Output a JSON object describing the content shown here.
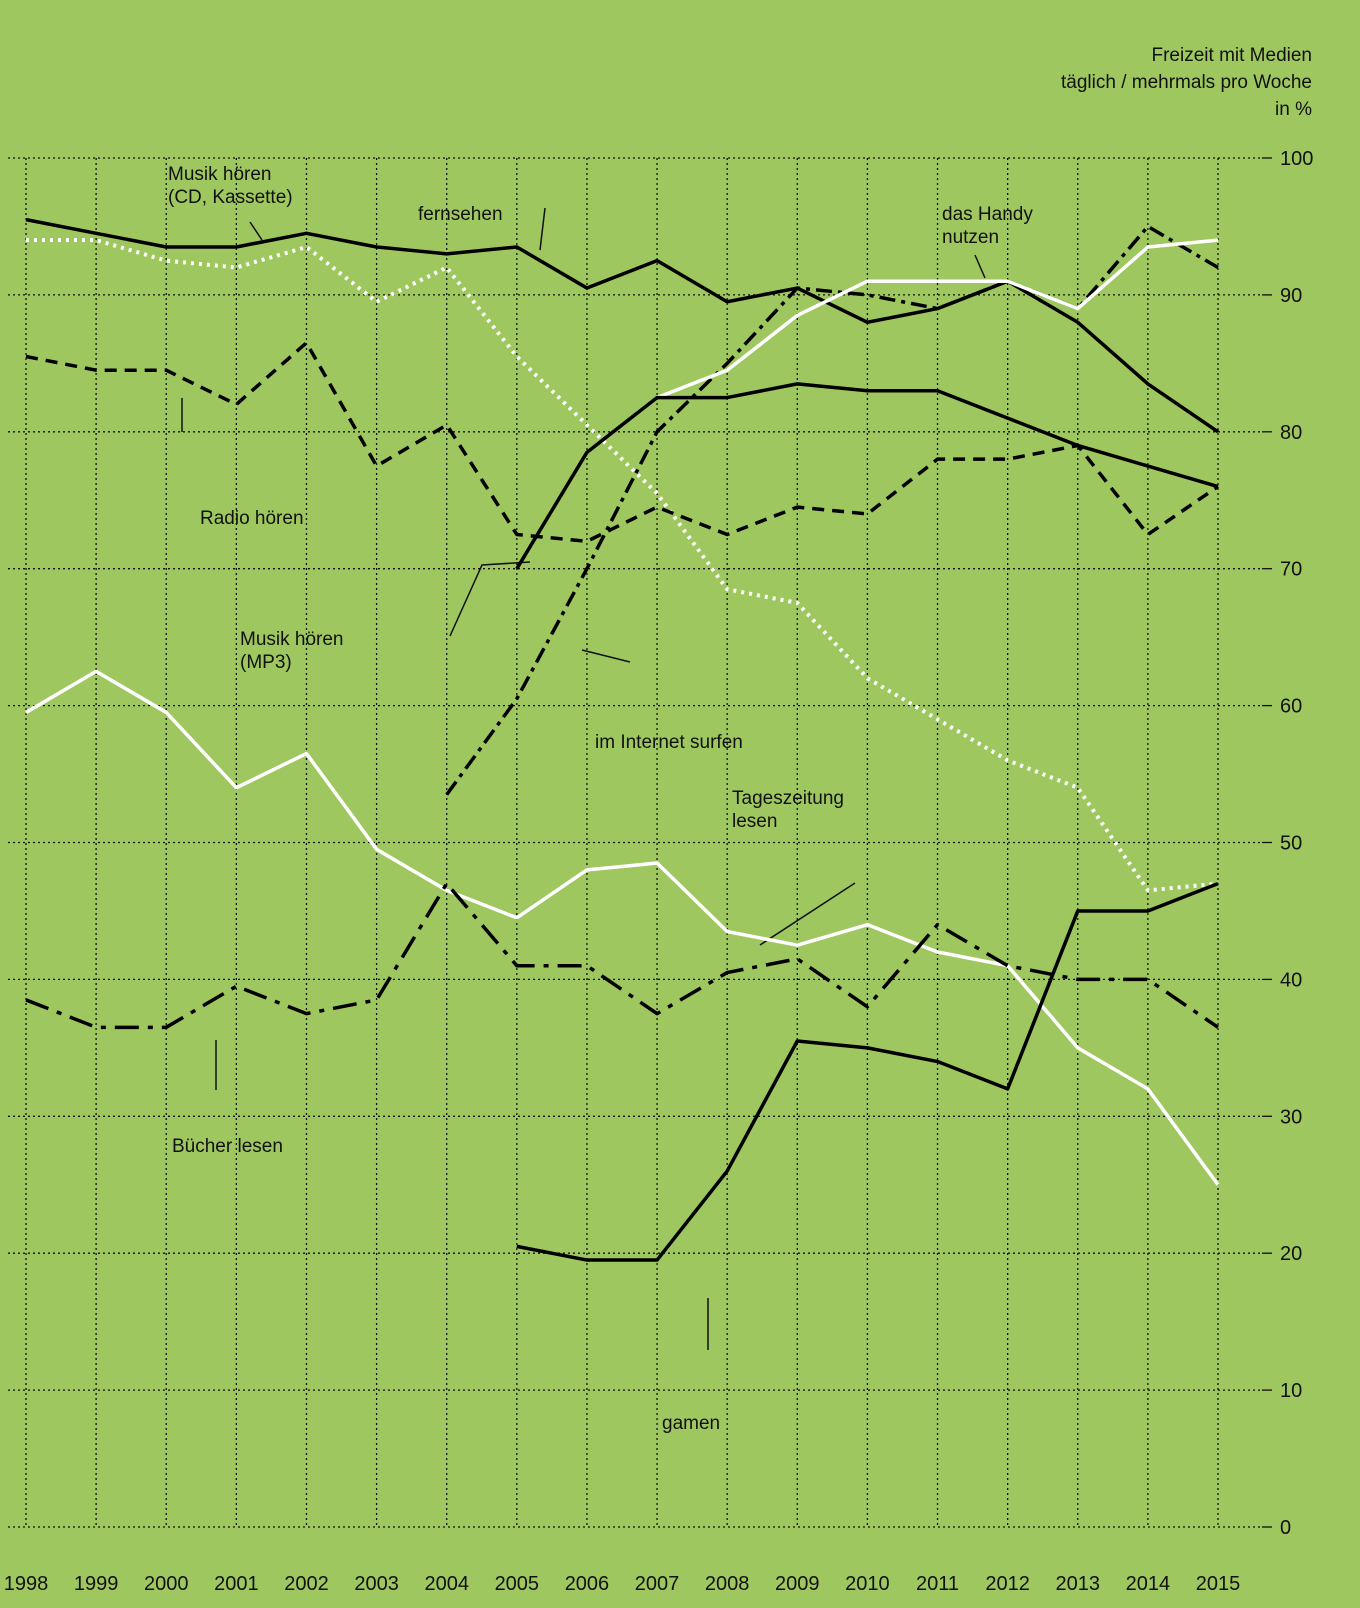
{
  "chart_data": {
    "type": "line",
    "title": "Freizeit mit Medien",
    "subtitle": "täglich / mehrmals pro Woche",
    "unit": "in %",
    "x": [
      1998,
      1999,
      2000,
      2001,
      2002,
      2003,
      2004,
      2005,
      2006,
      2007,
      2008,
      2009,
      2010,
      2011,
      2012,
      2013,
      2014,
      2015
    ],
    "xlim": [
      1998,
      2015
    ],
    "xticks": [
      1998,
      1999,
      2000,
      2001,
      2002,
      2003,
      2004,
      2005,
      2006,
      2007,
      2008,
      2009,
      2010,
      2011,
      2012,
      2013,
      2014,
      2015
    ],
    "ylim": [
      0,
      100
    ],
    "yticks": [
      0,
      10,
      20,
      30,
      40,
      50,
      60,
      70,
      80,
      90,
      100
    ],
    "grid": true,
    "series": [
      {
        "name": "Musik hören\n(CD, Kassette)",
        "color": "#000000",
        "style": "solid",
        "values": [
          95.5,
          94.5,
          93.5,
          93.5,
          94.5,
          93.5,
          93,
          93.5,
          90.5,
          92.5,
          89.5,
          90.5,
          88,
          89,
          91,
          88,
          83.5,
          80
        ]
      },
      {
        "name": "fernsehen",
        "color": "#ffffff",
        "style": "dotted",
        "values": [
          94,
          94,
          92.5,
          92,
          93.5,
          89.5,
          92,
          85.5,
          80.5,
          75.5,
          68.5,
          67.5,
          62,
          59,
          56,
          54,
          46.5,
          47
        ]
      },
      {
        "name": "Radio hören",
        "color": "#000000",
        "style": "dashed",
        "values": [
          85.5,
          84.5,
          84.5,
          82,
          86.5,
          77.5,
          80.5,
          72.5,
          72,
          74.5,
          72.5,
          74.5,
          74,
          78,
          78,
          79,
          72.5,
          76
        ]
      },
      {
        "name": "das Handy\nnutzen",
        "color": "#000000",
        "style": "dashdot",
        "values": [
          null,
          null,
          null,
          null,
          null,
          null,
          53.5,
          60.5,
          70,
          80,
          85,
          90.5,
          90,
          89,
          91,
          89,
          95,
          92
        ]
      },
      {
        "name": "im Internet surfen",
        "color": "#ffffff",
        "style": "solid",
        "values": [
          null,
          null,
          null,
          null,
          null,
          null,
          null,
          null,
          null,
          82.5,
          84.5,
          88.5,
          91,
          91,
          91,
          89,
          93.5,
          94
        ]
      },
      {
        "name": "Musik hören\n(MP3)",
        "color": "#000000",
        "style": "solid",
        "values": [
          null,
          null,
          null,
          null,
          null,
          null,
          null,
          70,
          78.5,
          82.5,
          82.5,
          83.5,
          83,
          83,
          81,
          79,
          77.5,
          76
        ]
      },
      {
        "name": "Tageszeitung\nlesen",
        "color": "#ffffff",
        "style": "solid",
        "values": [
          59.5,
          62.5,
          59.5,
          54,
          56.5,
          49.5,
          46.5,
          44.5,
          48,
          48.5,
          43.5,
          42.5,
          44,
          42,
          41,
          35,
          32,
          25
        ]
      },
      {
        "name": "Bücher lesen",
        "color": "#000000",
        "style": "longdashdot",
        "values": [
          38.5,
          36.5,
          36.5,
          39.5,
          37.5,
          38.5,
          47,
          41,
          41,
          37.5,
          40.5,
          41.5,
          38,
          44,
          41,
          40,
          40,
          36.5
        ]
      },
      {
        "name": "gamen",
        "color": "#000000",
        "style": "solid",
        "values": [
          null,
          null,
          null,
          null,
          null,
          null,
          null,
          20.5,
          19.5,
          19.5,
          26,
          35.5,
          35,
          34,
          32,
          45,
          45,
          47
        ]
      }
    ]
  }
}
